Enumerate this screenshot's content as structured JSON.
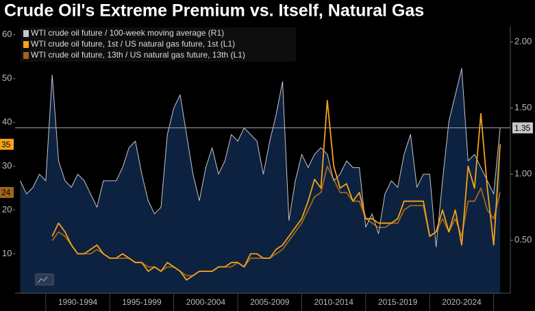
{
  "chart_data": {
    "type": "line",
    "title": "Crude Oil's Extreme Premium vs. Itself, Natural Gas",
    "x": [
      1988,
      1988.5,
      1989,
      1989.5,
      1990,
      1990.5,
      1991,
      1991.5,
      1992,
      1992.5,
      1993,
      1993.5,
      1994,
      1994.5,
      1995,
      1995.5,
      1996,
      1996.5,
      1997,
      1997.5,
      1998,
      1998.5,
      1999,
      1999.5,
      2000,
      2000.5,
      2001,
      2001.5,
      2002,
      2002.5,
      2003,
      2003.5,
      2004,
      2004.5,
      2005,
      2005.5,
      2006,
      2006.5,
      2007,
      2007.5,
      2008,
      2008.5,
      2009,
      2009.5,
      2010,
      2010.5,
      2011,
      2011.5,
      2012,
      2012.5,
      2013,
      2013.5,
      2014,
      2014.5,
      2015,
      2015.5,
      2016,
      2016.5,
      2017,
      2017.5,
      2018,
      2018.5,
      2019,
      2019.5,
      2020,
      2020.5,
      2021,
      2021.5,
      2022,
      2022.5,
      2023,
      2023.5,
      2024,
      2024.5,
      2025,
      2025.5
    ],
    "xlim": [
      1987.6,
      2026.3
    ],
    "xticks": [
      1990,
      1995,
      2000,
      2005,
      2010,
      2015,
      2020,
      2025
    ],
    "x_period_labels": [
      "1990-1994",
      "1995-1999",
      "2000-2004",
      "2005-2009",
      "2010-2014",
      "2015-2019",
      "2020-2024"
    ],
    "ylim": [
      1,
      62
    ],
    "yticks": [
      10,
      20,
      30,
      40,
      50,
      60
    ],
    "y2lim": [
      0.1,
      2.12
    ],
    "y2ticks": [
      {
        "value": 0.5,
        "label": "0.50"
      },
      {
        "value": 1,
        "label": "1.00"
      },
      {
        "value": 1.5,
        "label": "1.50"
      },
      {
        "value": 2,
        "label": "2.00"
      }
    ],
    "grid": false,
    "legend": "top-left",
    "series": [
      {
        "name": "WTI crude oil future / 100-week moving average (R1)",
        "color": "#c8c8c8",
        "fill": "#0d2240",
        "axis": "y2",
        "end_value": 1.35,
        "values": [
          0.95,
          0.85,
          0.9,
          1.0,
          0.95,
          1.75,
          1.1,
          0.95,
          0.9,
          1.0,
          0.95,
          0.85,
          0.75,
          0.95,
          0.95,
          0.95,
          1.05,
          1.2,
          1.25,
          1.0,
          0.8,
          0.7,
          0.75,
          1.3,
          1.5,
          1.6,
          1.3,
          1.0,
          0.8,
          1.05,
          1.2,
          1.0,
          1.1,
          1.3,
          1.25,
          1.35,
          1.3,
          1.25,
          1.0,
          1.25,
          1.45,
          1.7,
          0.65,
          0.95,
          1.15,
          1.05,
          1.15,
          1.2,
          1.15,
          0.95,
          1.0,
          1.1,
          1.05,
          1.05,
          0.6,
          0.7,
          0.55,
          0.85,
          0.95,
          0.9,
          1.15,
          1.3,
          0.9,
          1.0,
          1.0,
          0.45,
          0.95,
          1.4,
          1.6,
          1.8,
          1.1,
          1.15,
          1.05,
          0.95,
          0.85,
          1.35
        ]
      },
      {
        "name": "WTI crude oil future, 1st / US natural gas future, 1st (L1)",
        "color": "#f7a21b",
        "axis": "y",
        "end_value": 35,
        "values": [
          null,
          null,
          null,
          null,
          null,
          14,
          17,
          15,
          12,
          10,
          10,
          11,
          12,
          10,
          9,
          9,
          10,
          9,
          8,
          8,
          6,
          7,
          6,
          8,
          7,
          6,
          4,
          5,
          6,
          6,
          6,
          7,
          7,
          8,
          8,
          7,
          10,
          10,
          9,
          9,
          11,
          12,
          14,
          16,
          18,
          22,
          27,
          25,
          45,
          30,
          25,
          26,
          22,
          24,
          18,
          18,
          17,
          17,
          17,
          18,
          22,
          22,
          22,
          22,
          14,
          15,
          20,
          15,
          20,
          12,
          30,
          25,
          42,
          25,
          12,
          35
        ]
      },
      {
        "name": "WTI crude oil future, 13th / US natural gas future, 13th (L1)",
        "color": "#a0661c",
        "axis": "y",
        "end_value": 24,
        "values": [
          null,
          null,
          null,
          null,
          null,
          13,
          15,
          14,
          12,
          10,
          10,
          10,
          11,
          10,
          9,
          9,
          9,
          9,
          8,
          8,
          7,
          7,
          6,
          7,
          7,
          6,
          5,
          5,
          6,
          6,
          6,
          7,
          7,
          7,
          8,
          7,
          9,
          9,
          9,
          9,
          10,
          11,
          13,
          15,
          17,
          20,
          23,
          24,
          30,
          27,
          24,
          24,
          22,
          22,
          18,
          17,
          16,
          16,
          17,
          17,
          20,
          21,
          21,
          21,
          14,
          15,
          18,
          15,
          18,
          14,
          22,
          22,
          25,
          20,
          18,
          24
        ]
      }
    ]
  }
}
